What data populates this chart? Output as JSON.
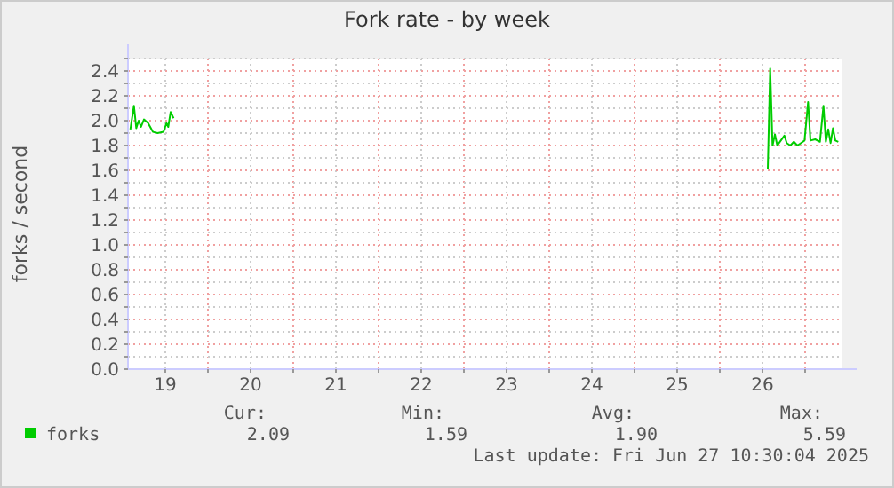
{
  "chart_data": {
    "type": "line",
    "title": "Fork rate - by week",
    "ylabel": "forks / second",
    "xlim": [
      "2025-06-19T01:30",
      "2025-06-27T10:30"
    ],
    "xticks": [
      {
        "value": "2025-06-19T12:00",
        "label": "19"
      },
      {
        "value": "2025-06-20T00:00",
        "label": null
      },
      {
        "value": "2025-06-20T12:00",
        "label": "20"
      },
      {
        "value": "2025-06-21T00:00",
        "label": null
      },
      {
        "value": "2025-06-21T12:00",
        "label": "21"
      },
      {
        "value": "2025-06-22T00:00",
        "label": null
      },
      {
        "value": "2025-06-22T12:00",
        "label": "22"
      },
      {
        "value": "2025-06-23T00:00",
        "label": null
      },
      {
        "value": "2025-06-23T12:00",
        "label": "23"
      },
      {
        "value": "2025-06-24T00:00",
        "label": null
      },
      {
        "value": "2025-06-24T12:00",
        "label": "24"
      },
      {
        "value": "2025-06-25T00:00",
        "label": null
      },
      {
        "value": "2025-06-25T12:00",
        "label": "25"
      },
      {
        "value": "2025-06-26T00:00",
        "label": null
      },
      {
        "value": "2025-06-26T12:00",
        "label": "26"
      },
      {
        "value": "2025-06-27T00:00",
        "label": null
      }
    ],
    "ylim": [
      0,
      2.5
    ],
    "yticks": [
      {
        "value": 0,
        "label": "0.0"
      },
      {
        "value": 0.1,
        "label": null
      },
      {
        "value": 0.2,
        "label": "0.2"
      },
      {
        "value": 0.3,
        "label": null
      },
      {
        "value": 0.4,
        "label": "0.4"
      },
      {
        "value": 0.5,
        "label": null
      },
      {
        "value": 0.6,
        "label": "0.6"
      },
      {
        "value": 0.7,
        "label": null
      },
      {
        "value": 0.8,
        "label": "0.8"
      },
      {
        "value": 0.9,
        "label": null
      },
      {
        "value": 1.0,
        "label": "1.0"
      },
      {
        "value": 1.1,
        "label": null
      },
      {
        "value": 1.2,
        "label": "1.2"
      },
      {
        "value": 1.3,
        "label": null
      },
      {
        "value": 1.4,
        "label": "1.4"
      },
      {
        "value": 1.5,
        "label": null
      },
      {
        "value": 1.6,
        "label": "1.6"
      },
      {
        "value": 1.7,
        "label": null
      },
      {
        "value": 1.8,
        "label": "1.8"
      },
      {
        "value": 1.9,
        "label": null
      },
      {
        "value": 2.0,
        "label": "2.0"
      },
      {
        "value": 2.1,
        "label": null
      },
      {
        "value": 2.2,
        "label": "2.2"
      },
      {
        "value": 2.3,
        "label": null
      },
      {
        "value": 2.4,
        "label": "2.4"
      },
      {
        "value": 2.5,
        "label": null
      }
    ],
    "grid": true,
    "legend": "bottom left",
    "series": [
      {
        "name": "forks",
        "color": "#00cc00",
        "x": [
          "2025-06-19T02:10",
          "2025-06-19T03:10",
          "2025-06-19T03:50",
          "2025-06-19T04:30",
          "2025-06-19T05:10",
          "2025-06-19T06:00",
          "2025-06-19T07:10",
          "2025-06-19T08:30",
          "2025-06-19T09:50",
          "2025-06-19T11:30",
          "2025-06-19T12:20",
          "2025-06-19T12:50",
          "2025-06-19T13:30",
          "2025-06-19T14:20",
          "2025-06-22T12:00",
          "2025-06-26T13:30",
          "2025-06-26T14:10",
          "2025-06-26T14:50",
          "2025-06-26T15:30",
          "2025-06-26T16:10",
          "2025-06-26T17:10",
          "2025-06-26T18:10",
          "2025-06-26T18:50",
          "2025-06-26T19:50",
          "2025-06-26T20:50",
          "2025-06-26T21:50",
          "2025-06-26T22:50",
          "2025-06-26T23:50",
          "2025-06-27T00:50",
          "2025-06-27T01:30",
          "2025-06-27T02:50",
          "2025-06-27T04:10",
          "2025-06-27T05:10",
          "2025-06-27T05:50",
          "2025-06-27T06:30",
          "2025-06-27T07:10",
          "2025-06-27T07:50",
          "2025-06-27T08:30",
          "2025-06-27T09:20"
        ],
        "values": [
          1.93,
          2.12,
          1.94,
          2.0,
          1.95,
          2.01,
          1.98,
          1.91,
          1.9,
          1.91,
          1.98,
          1.95,
          2.07,
          2.02,
          null,
          1.61,
          2.42,
          1.8,
          1.89,
          1.8,
          1.84,
          1.88,
          1.82,
          1.8,
          1.83,
          1.8,
          1.82,
          1.84,
          2.15,
          1.84,
          1.85,
          1.83,
          2.12,
          1.83,
          1.93,
          1.82,
          1.94,
          1.84,
          1.83
        ]
      }
    ],
    "annotations": [
      "Cur:",
      "Min:",
      "Avg:",
      "Max:",
      "2.09",
      "1.59",
      "1.90",
      "5.59",
      "Last update: Fri Jun 27 10:30:04 2025"
    ]
  }
}
